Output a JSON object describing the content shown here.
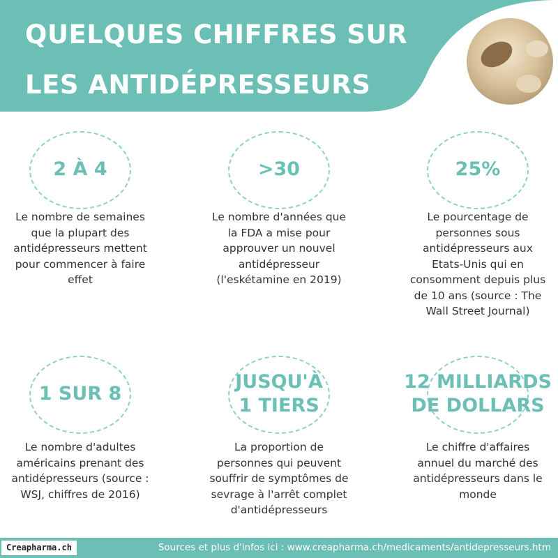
{
  "header": {
    "title_lines": [
      "QUELQUES CHIFFRES SUR",
      "LES ANTIDÉPRESSEURS"
    ]
  },
  "stats": [
    {
      "value_lines": [
        "2 À 4"
      ],
      "description": "Le nombre de semaines que la plupart des antidépresseurs mettent pour commencer à faire effet"
    },
    {
      "value_lines": [
        ">30"
      ],
      "description": "Le nombre d'années que la FDA a mise pour approuver un nouvel antidépresseur (l'eskétamine en 2019)"
    },
    {
      "value_lines": [
        "25%"
      ],
      "description": "Le pourcentage de personnes sous antidépresseurs aux Etats-Unis qui en consomment depuis plus de 10 ans (source : The Wall Street Journal)"
    },
    {
      "value_lines": [
        "1 SUR 8"
      ],
      "description": "Le nombre d'adultes américains prenant des antidépresseurs (source : WSJ, chiffres de 2016)"
    },
    {
      "value_lines": [
        "JUSQU'À",
        "1 TIERS"
      ],
      "description": "La proportion de personnes qui peuvent souffrir de symptômes de sevrage à l'arrêt complet d'antidépresseurs"
    },
    {
      "value_lines": [
        "12 MILLIARDS",
        "DE DOLLARS"
      ],
      "description": "Le chiffre d'affaires annuel du marché des antidépresseurs dans le monde"
    }
  ],
  "footer": {
    "logo": "Creapharma.ch",
    "sources": "Sources et plus d'infos ici : www.creapharma.ch/medicaments/antidepresseurs.htm"
  }
}
